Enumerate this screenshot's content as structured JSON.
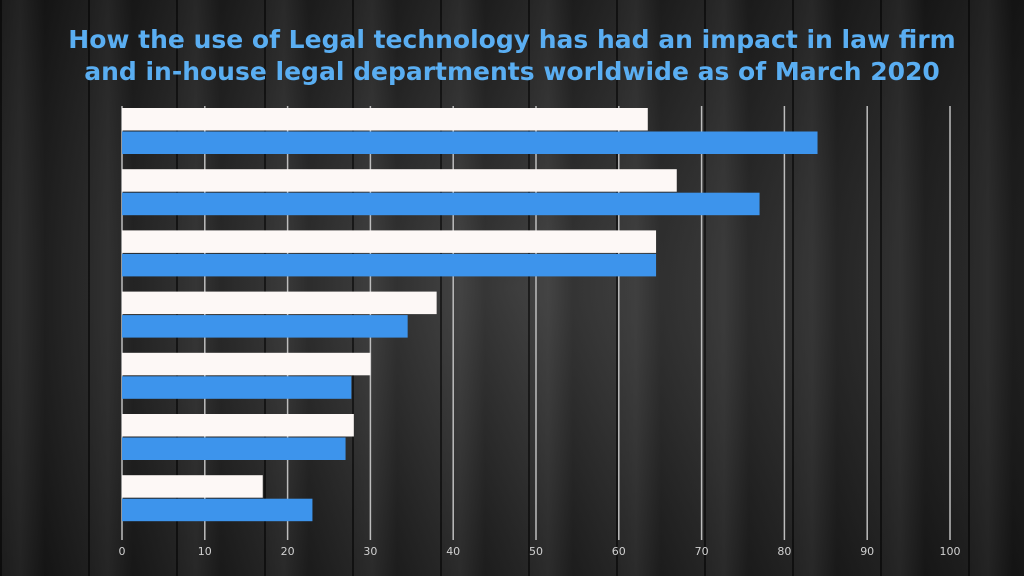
{
  "chart_data": {
    "type": "bar",
    "orientation": "horizontal",
    "title": "How the use of Legal technology has had an impact in law firm and in-house legal departments worldwide as of March 2020",
    "series": [
      {
        "color": "#fdf8f6",
        "values": [
          63.5,
          67,
          64.5,
          38,
          30,
          28,
          17
        ]
      },
      {
        "color": "#3d94ec",
        "values": [
          84,
          77,
          64.5,
          34.5,
          27.7,
          27,
          23
        ]
      }
    ],
    "xlim": [
      0,
      100
    ],
    "xticks": [
      0,
      10,
      20,
      30,
      40,
      50,
      60,
      70,
      80,
      90,
      100
    ],
    "grid": true
  }
}
